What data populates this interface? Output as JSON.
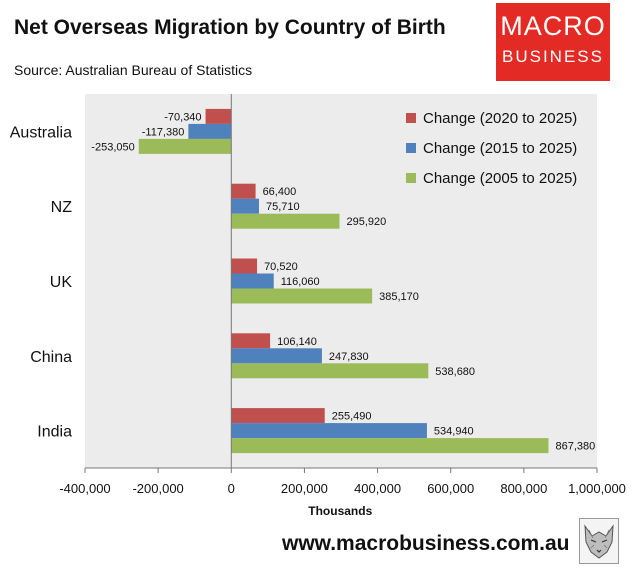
{
  "header": {
    "title": "Net Overseas Migration by Country of Birth",
    "source": "Source: Australian Bureau of Statistics"
  },
  "logo": {
    "line1": "MACRO",
    "line2": "BUSINESS"
  },
  "footer": {
    "website": "www.macrobusiness.com.au"
  },
  "colors": {
    "series_2020": "#c0504d",
    "series_2015": "#4f81bd",
    "series_2005": "#9bbb59",
    "logo_bg": "#e42a24"
  },
  "chart_data": {
    "type": "bar",
    "orientation": "horizontal",
    "title": "Net Overseas Migration by Country of Birth",
    "xlabel": "Thousands",
    "ylabel": "",
    "categories": [
      "Australia",
      "NZ",
      "UK",
      "China",
      "India"
    ],
    "series": [
      {
        "name": "Change (2020 to 2025)",
        "values": [
          -70340,
          66400,
          70520,
          106140,
          255490
        ],
        "labels": [
          "-70,340",
          "66,400",
          "70,520",
          "106,140",
          "255,490"
        ]
      },
      {
        "name": "Change (2015 to 2025)",
        "values": [
          -117380,
          75710,
          116060,
          247830,
          534940
        ],
        "labels": [
          "-117,380",
          "75,710",
          "116,060",
          "247,830",
          "534,940"
        ]
      },
      {
        "name": "Change (2005 to 2025)",
        "values": [
          -253050,
          295920,
          385170,
          538680,
          867380
        ],
        "labels": [
          "-253,050",
          "295,920",
          "385,170",
          "538,680",
          "867,380"
        ]
      }
    ],
    "xlim": [
      -400000,
      1000000
    ],
    "xticks": [
      -400000,
      -200000,
      0,
      200000,
      400000,
      600000,
      800000,
      1000000
    ],
    "xtick_labels": [
      "-400,000",
      "-200,000",
      "0",
      "200,000",
      "400,000",
      "600,000",
      "800,000",
      "1,000,000"
    ],
    "grid": false,
    "legend": "top-right"
  }
}
